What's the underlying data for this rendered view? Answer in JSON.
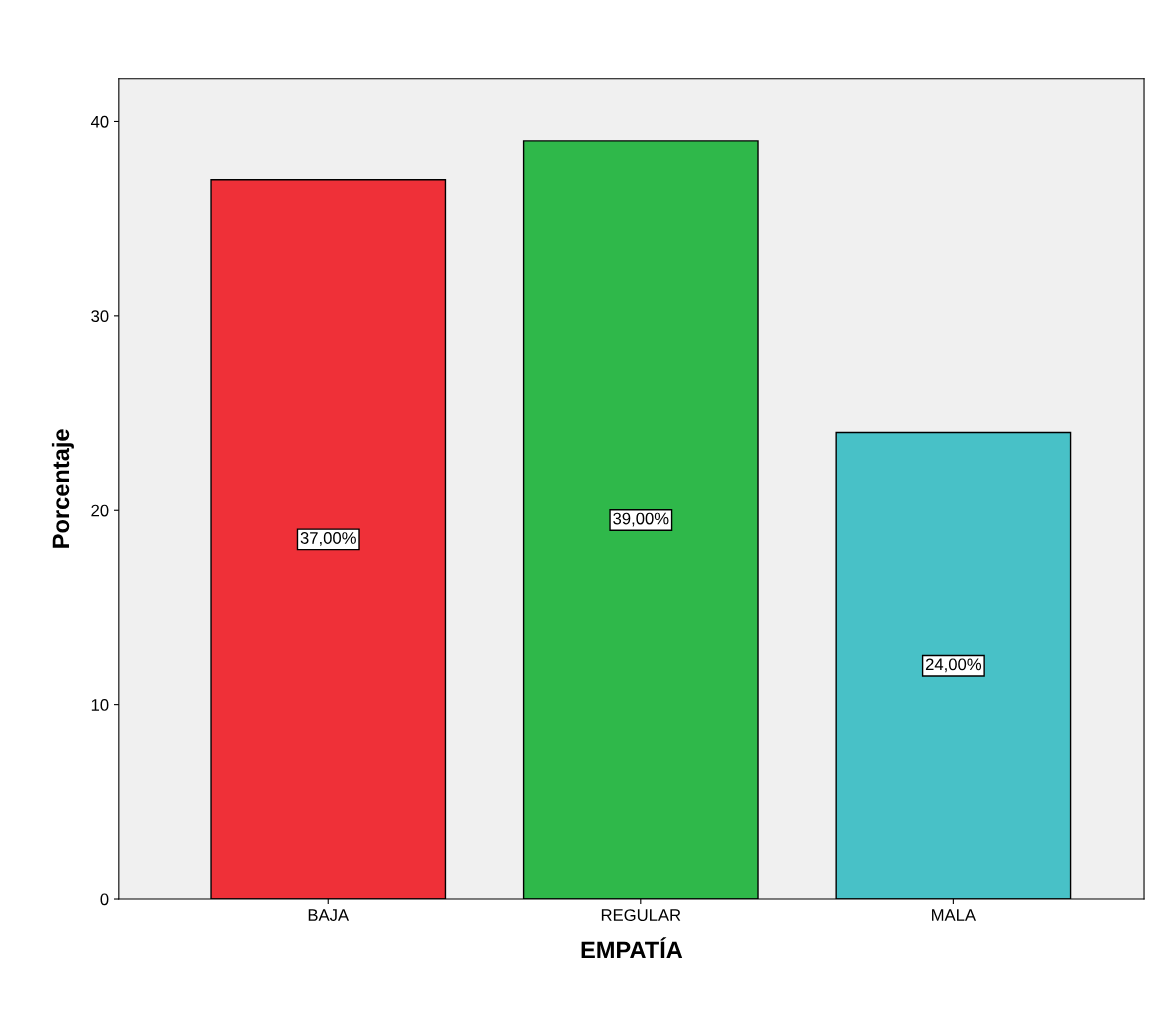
{
  "chart_data": {
    "type": "bar",
    "xlabel": "EMPATÍA",
    "ylabel": "Porcentaje",
    "categories": [
      "BAJA",
      "REGULAR",
      "MALA"
    ],
    "values": [
      37,
      39,
      24
    ],
    "colors": [
      "#ef3038",
      "#2fb84a",
      "#48c1c7"
    ],
    "value_labels": [
      "37,00%",
      "39,00%",
      "24,00%"
    ],
    "ylim": [
      0,
      42.2
    ],
    "yticks": [
      0,
      10,
      20,
      30,
      40
    ],
    "grid": false
  }
}
